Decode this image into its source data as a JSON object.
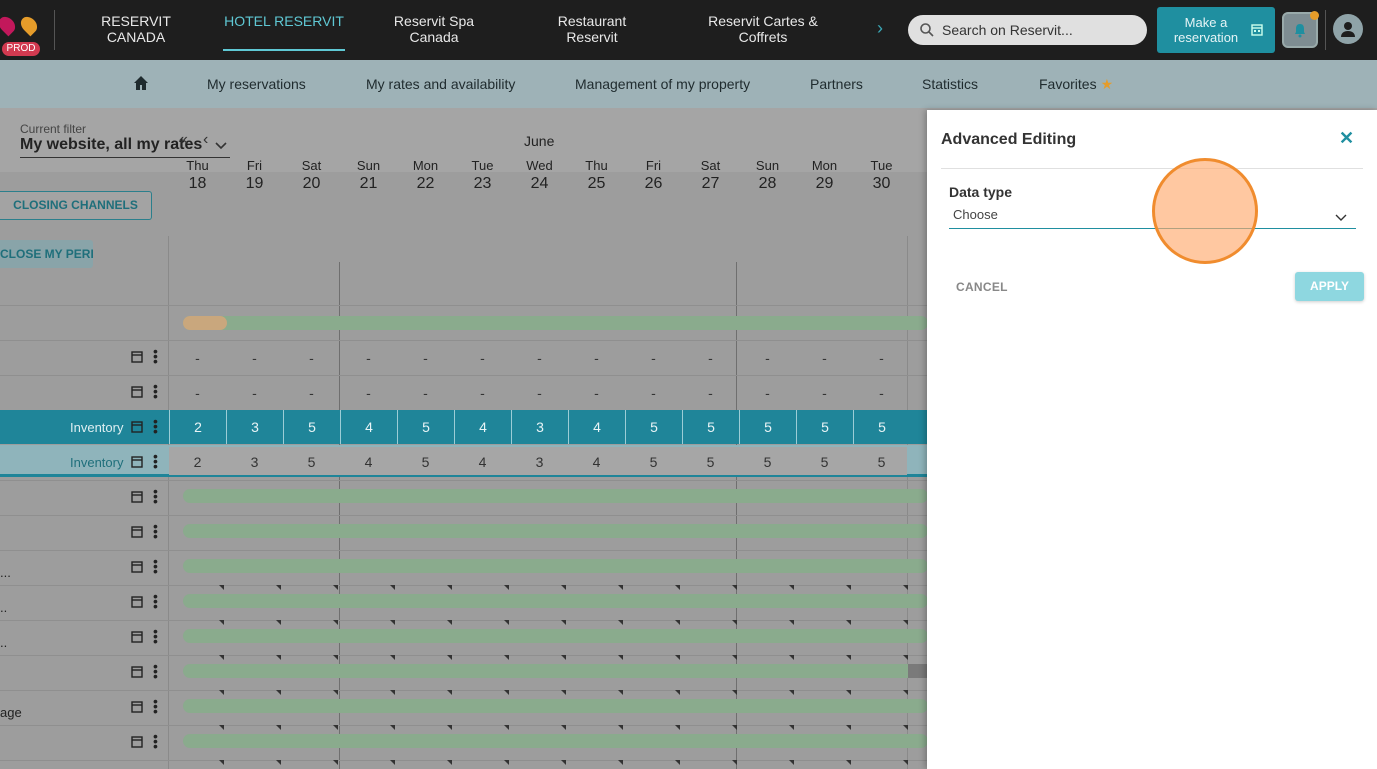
{
  "topbar": {
    "prod_badge": "PROD",
    "nav": [
      {
        "label": "RESERVIT CANADA"
      },
      {
        "label": "HOTEL RESERVIT"
      },
      {
        "label": "Reservit Spa Canada"
      },
      {
        "label": "Restaurant Reservit"
      },
      {
        "label": "Reservit Cartes & Coffrets"
      }
    ],
    "search_placeholder": "Search on Reservit...",
    "make_reservation": "Make a reservation"
  },
  "subnav": {
    "items": [
      "My reservations",
      "My rates and availability",
      "Management of my property",
      "Partners",
      "Statistics",
      "Favorites"
    ]
  },
  "filter": {
    "label": "Current filter",
    "value": "My website, all my rates"
  },
  "toolbar": {
    "closing_channels": "CLOSING CHANNELS",
    "close_my_period": "CLOSE MY PERIOD"
  },
  "calendar": {
    "month": "June",
    "days": [
      {
        "name": "Thu",
        "num": "18"
      },
      {
        "name": "Fri",
        "num": "19"
      },
      {
        "name": "Sat",
        "num": "20"
      },
      {
        "name": "Sun",
        "num": "21"
      },
      {
        "name": "Mon",
        "num": "22"
      },
      {
        "name": "Tue",
        "num": "23"
      },
      {
        "name": "Wed",
        "num": "24"
      },
      {
        "name": "Thu",
        "num": "25"
      },
      {
        "name": "Fri",
        "num": "26"
      },
      {
        "name": "Sat",
        "num": "27"
      },
      {
        "name": "Sun",
        "num": "28"
      },
      {
        "name": "Mon",
        "num": "29"
      },
      {
        "name": "Tue",
        "num": "30"
      }
    ],
    "dash": "-",
    "inventory_label": "Inventory",
    "inventory_1": [
      "2",
      "3",
      "5",
      "4",
      "5",
      "4",
      "3",
      "4",
      "5",
      "5",
      "5",
      "5",
      "5"
    ],
    "inventory_2": [
      "2",
      "3",
      "5",
      "4",
      "5",
      "4",
      "3",
      "4",
      "5",
      "5",
      "5",
      "5",
      "5"
    ],
    "row_fragments": [
      "...",
      "..",
      "..",
      "age"
    ]
  },
  "panel": {
    "title": "Advanced Editing",
    "data_type_label": "Data type",
    "data_type_value": "Choose",
    "cancel": "CANCEL",
    "apply": "APPLY"
  }
}
